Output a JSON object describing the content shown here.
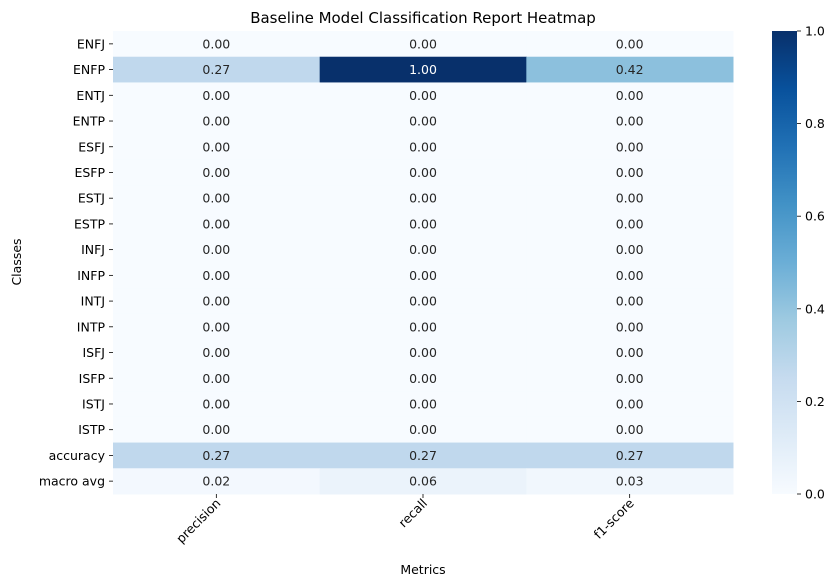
{
  "chart_data": {
    "type": "heatmap",
    "title": "Baseline Model Classification Report Heatmap",
    "xlabel": "Metrics",
    "ylabel": "Classes",
    "columns": [
      "precision",
      "recall",
      "f1-score"
    ],
    "rows": [
      "ENFJ",
      "ENFP",
      "ENTJ",
      "ENTP",
      "ESFJ",
      "ESFP",
      "ESTJ",
      "ESTP",
      "INFJ",
      "INFP",
      "INTJ",
      "INTP",
      "ISFJ",
      "ISFP",
      "ISTJ",
      "ISTP",
      "accuracy",
      "macro avg"
    ],
    "values": [
      [
        0.0,
        0.0,
        0.0
      ],
      [
        0.27,
        1.0,
        0.42
      ],
      [
        0.0,
        0.0,
        0.0
      ],
      [
        0.0,
        0.0,
        0.0
      ],
      [
        0.0,
        0.0,
        0.0
      ],
      [
        0.0,
        0.0,
        0.0
      ],
      [
        0.0,
        0.0,
        0.0
      ],
      [
        0.0,
        0.0,
        0.0
      ],
      [
        0.0,
        0.0,
        0.0
      ],
      [
        0.0,
        0.0,
        0.0
      ],
      [
        0.0,
        0.0,
        0.0
      ],
      [
        0.0,
        0.0,
        0.0
      ],
      [
        0.0,
        0.0,
        0.0
      ],
      [
        0.0,
        0.0,
        0.0
      ],
      [
        0.0,
        0.0,
        0.0
      ],
      [
        0.0,
        0.0,
        0.0
      ],
      [
        0.27,
        0.27,
        0.27
      ],
      [
        0.02,
        0.06,
        0.03
      ]
    ],
    "value_format_decimals": 2,
    "colormap": "Blues",
    "vmin": 0.0,
    "vmax": 1.0,
    "colorbar_ticks": [
      "0.0",
      "0.2",
      "0.4",
      "0.6",
      "0.8",
      "1.0"
    ],
    "tick_label_rotation_deg": 45,
    "colors": {
      "low": "#f7fbff",
      "high": "#08306b",
      "text_dark": "#262626",
      "text_light": "#ffffff"
    }
  }
}
